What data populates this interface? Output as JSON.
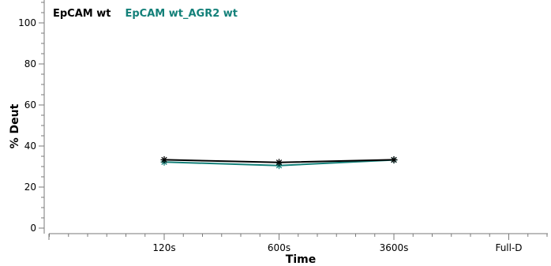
{
  "chart_data": {
    "type": "line",
    "categories": [
      "120s",
      "600s",
      "3600s",
      "Full-D"
    ],
    "series": [
      {
        "name": "EpCAM wt",
        "color": "#000000",
        "marker": "asterisk",
        "values": [
          33.3,
          32.0,
          33.3,
          null
        ]
      },
      {
        "name": "EpCAM wt_AGR2 wt",
        "color": "#138079",
        "marker": "asterisk",
        "values": [
          32.2,
          30.5,
          33.2,
          null
        ]
      }
    ],
    "xlabel": "Time",
    "ylabel": "% Deut",
    "ylim": [
      0,
      110
    ],
    "yticks": [
      0,
      20,
      40,
      60,
      80,
      100
    ],
    "grid": false,
    "legend_position": "top-left"
  }
}
